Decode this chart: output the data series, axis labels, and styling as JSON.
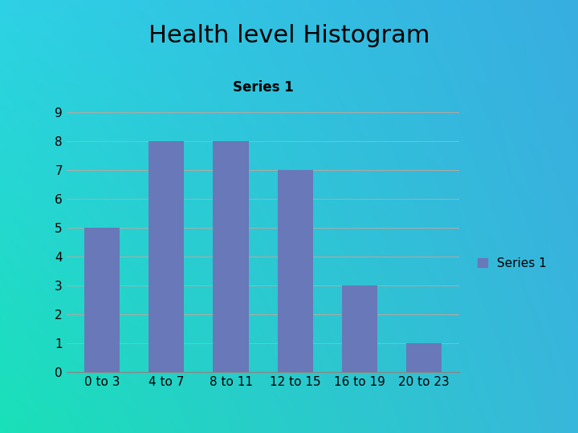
{
  "title": "Health level Histogram",
  "series_label": "Series 1",
  "categories": [
    "0 to 3",
    "4 to 7",
    "8 to 11",
    "12 to 15",
    "16 to 19",
    "20 to 23"
  ],
  "values": [
    5,
    8,
    8,
    7,
    3,
    1
  ],
  "bar_color": "#6878b8",
  "ylim": [
    0,
    9
  ],
  "yticks": [
    0,
    1,
    2,
    3,
    4,
    5,
    6,
    7,
    8,
    9
  ],
  "title_fontsize": 22,
  "tick_fontsize": 11,
  "legend_fontsize": 11,
  "chart_label": "Series 1",
  "chart_label_fontsize": 12,
  "grid_color": "#b8a8a0",
  "bg_tl": [
    0.18,
    0.82,
    0.9
  ],
  "bg_tr": [
    0.22,
    0.68,
    0.88
  ],
  "bg_bl": [
    0.1,
    0.88,
    0.72
  ],
  "bg_br": [
    0.22,
    0.72,
    0.86
  ]
}
